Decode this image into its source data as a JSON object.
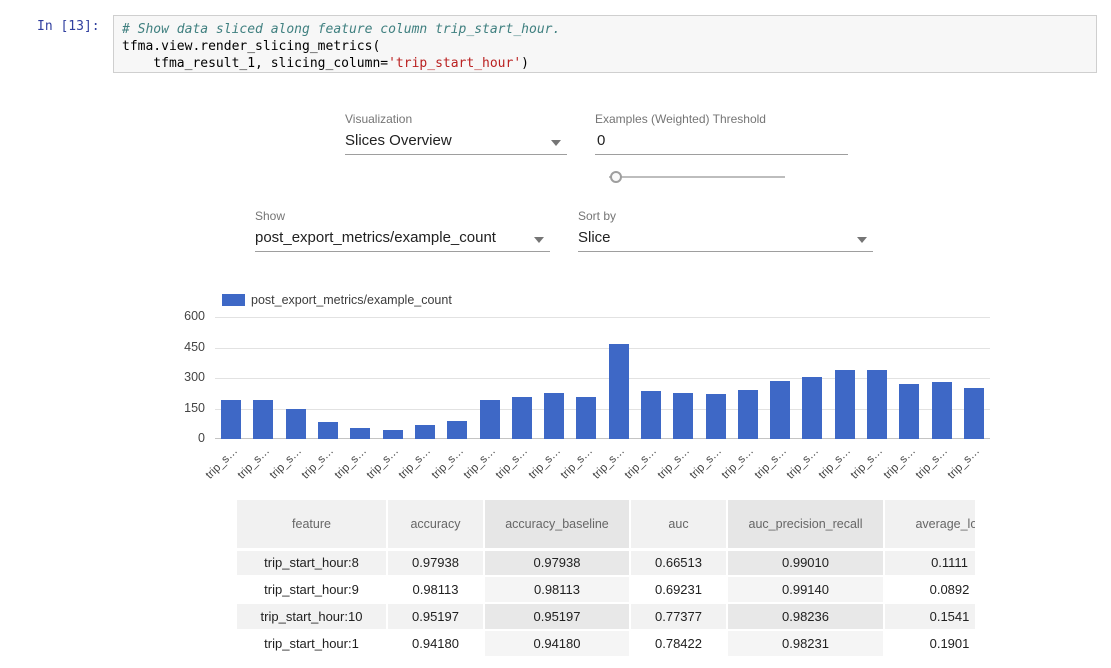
{
  "notebook": {
    "prompt": "In [13]:",
    "code": {
      "comment": "# Show data sliced along feature column trip_start_hour.",
      "line2": "tfma.view.render_slicing_metrics(",
      "line3_pre": "    tfma_result_1, slicing_column=",
      "line3_string": "'trip_start_hour'",
      "line3_post": ")"
    }
  },
  "controls": {
    "visualization": {
      "label": "Visualization",
      "value": "Slices Overview"
    },
    "threshold": {
      "label": "Examples (Weighted) Threshold",
      "value": "0"
    },
    "show": {
      "label": "Show",
      "value": "post_export_metrics/example_count"
    },
    "sort": {
      "label": "Sort by",
      "value": "Slice"
    }
  },
  "colors": {
    "bar": "#3E68C6",
    "prompt": "#303F9F",
    "comment": "#408080",
    "string": "#BA2121"
  },
  "chart_data": {
    "type": "bar",
    "legend": "post_export_metrics/example_count",
    "categories": [
      "trip_s…",
      "trip_s…",
      "trip_s…",
      "trip_s…",
      "trip_s…",
      "trip_s…",
      "trip_s…",
      "trip_s…",
      "trip_s…",
      "trip_s…",
      "trip_s…",
      "trip_s…",
      "trip_s…",
      "trip_s…",
      "trip_s…",
      "trip_s…",
      "trip_s…",
      "trip_s…",
      "trip_s…",
      "trip_s…",
      "trip_s…",
      "trip_s…",
      "trip_s…",
      "trip_s…"
    ],
    "values": [
      190,
      190,
      150,
      85,
      55,
      45,
      70,
      90,
      190,
      205,
      225,
      205,
      465,
      235,
      225,
      220,
      240,
      285,
      305,
      340,
      340,
      270,
      280,
      250
    ],
    "title": "",
    "xlabel": "",
    "ylabel": "",
    "ylim": [
      0,
      600
    ],
    "yticks": [
      0,
      150,
      300,
      450,
      600
    ],
    "grid": true,
    "legend_position": "top-left"
  },
  "table": {
    "headers": [
      "feature",
      "accuracy",
      "accuracy_baseline",
      "auc",
      "auc_precision_recall",
      "average_los"
    ],
    "rows": [
      [
        "trip_start_hour:8",
        "0.97938",
        "0.97938",
        "0.66513",
        "0.99010",
        "0.1111"
      ],
      [
        "trip_start_hour:9",
        "0.98113",
        "0.98113",
        "0.69231",
        "0.99140",
        "0.0892"
      ],
      [
        "trip_start_hour:10",
        "0.95197",
        "0.95197",
        "0.77377",
        "0.98236",
        "0.1541"
      ],
      [
        "trip_start_hour:1",
        "0.94180",
        "0.94180",
        "0.78422",
        "0.98231",
        "0.1901"
      ]
    ]
  }
}
